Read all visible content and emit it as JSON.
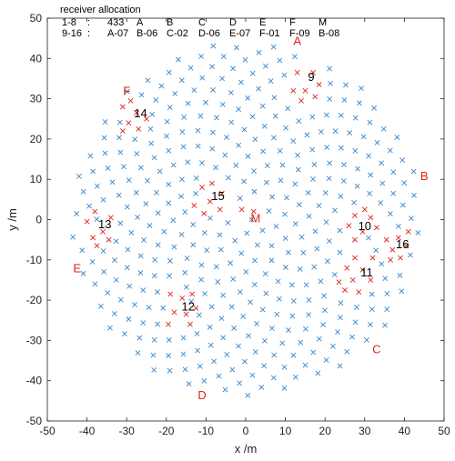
{
  "chart_data": {
    "type": "scatter",
    "title": "",
    "xlabel": "x /m",
    "ylabel": "y /m",
    "xlim": [
      -50,
      50
    ],
    "ylim": [
      -50,
      50
    ],
    "xticks": [
      -50,
      -40,
      -30,
      -20,
      -10,
      0,
      10,
      20,
      30,
      40,
      50
    ],
    "yticks": [
      -50,
      -40,
      -30,
      -20,
      -10,
      0,
      10,
      20,
      30,
      40,
      50
    ],
    "grid": false,
    "array_radius_m": 44,
    "colors": {
      "array": "#3a86c8",
      "selected": "#e0231b"
    },
    "legend": {
      "title": "receiver allocation",
      "rows": [
        [
          "1-8",
          ":",
          "433",
          "A",
          "B",
          "C",
          "D",
          "E",
          "F",
          "M"
        ],
        [
          "9-16",
          ":",
          "A-07",
          "B-06",
          "C-02",
          "D-06",
          "E-07",
          "F-01",
          "F-09",
          "B-08"
        ]
      ]
    },
    "group_labels": [
      {
        "text": "A",
        "x": 13.0,
        "y": 44.5
      },
      {
        "text": "B",
        "x": 45.0,
        "y": 11.0
      },
      {
        "text": "C",
        "x": 33.0,
        "y": -32.0
      },
      {
        "text": "D",
        "x": -11.0,
        "y": -43.5
      },
      {
        "text": "E",
        "x": -42.5,
        "y": -12.0
      },
      {
        "text": "F",
        "x": -30.0,
        "y": 32.0
      },
      {
        "text": "M",
        "x": 2.5,
        "y": 0.5
      }
    ],
    "subarray_numbers": [
      {
        "text": "9",
        "x": 16.5,
        "y": 35.5
      },
      {
        "text": "10",
        "x": 30.0,
        "y": -1.5
      },
      {
        "text": "11",
        "x": 30.5,
        "y": -13.0
      },
      {
        "text": "12",
        "x": -14.5,
        "y": -21.5
      },
      {
        "text": "13",
        "x": -35.5,
        "y": -1.0
      },
      {
        "text": "14",
        "x": -26.5,
        "y": 26.5
      },
      {
        "text": "15",
        "x": -7.0,
        "y": 6.0
      },
      {
        "text": "16",
        "x": 39.5,
        "y": -6.0
      }
    ],
    "selected_clusters": [
      {
        "name": "9",
        "points": [
          [
            13.0,
            36.5
          ],
          [
            15.0,
            32.0
          ],
          [
            17.0,
            36.5
          ],
          [
            18.5,
            33.5
          ],
          [
            12.0,
            32.0
          ],
          [
            14.0,
            29.5
          ],
          [
            17.5,
            30.5
          ]
        ]
      },
      {
        "name": "F",
        "points": [
          [
            -31.0,
            28.0
          ],
          [
            -29.0,
            29.5
          ],
          [
            -27.5,
            26.5
          ],
          [
            -29.5,
            24.0
          ],
          [
            -31.0,
            22.0
          ],
          [
            -27.0,
            22.5
          ],
          [
            -25.0,
            25.0
          ]
        ]
      },
      {
        "name": "15",
        "points": [
          [
            -11.0,
            8.0
          ],
          [
            -8.5,
            9.0
          ],
          [
            -6.0,
            6.5
          ],
          [
            -9.0,
            4.5
          ],
          [
            -6.5,
            2.5
          ],
          [
            -13.0,
            3.5
          ],
          [
            -10.5,
            1.5
          ]
        ]
      },
      {
        "name": "13",
        "points": [
          [
            -40.0,
            -0.5
          ],
          [
            -38.0,
            2.0
          ],
          [
            -36.0,
            -3.0
          ],
          [
            -34.0,
            0.5
          ],
          [
            -38.5,
            -4.5
          ],
          [
            -34.5,
            -5.0
          ],
          [
            -37.5,
            -6.5
          ]
        ]
      },
      {
        "name": "10",
        "points": [
          [
            26.0,
            -1.5
          ],
          [
            27.5,
            1.0
          ],
          [
            29.5,
            -3.0
          ],
          [
            31.5,
            0.5
          ],
          [
            27.5,
            -5.0
          ],
          [
            33.0,
            -2.0
          ],
          [
            30.0,
            2.5
          ]
        ]
      },
      {
        "name": "16",
        "points": [
          [
            38.5,
            -4.5
          ],
          [
            40.5,
            -6.5
          ],
          [
            37.0,
            -7.5
          ],
          [
            39.0,
            -9.5
          ],
          [
            41.0,
            -3.0
          ],
          [
            35.5,
            -5.0
          ],
          [
            36.5,
            -10.0
          ]
        ]
      },
      {
        "name": "11",
        "points": [
          [
            25.5,
            -12.0
          ],
          [
            27.5,
            -9.5
          ],
          [
            29.5,
            -12.5
          ],
          [
            27.0,
            -15.0
          ],
          [
            31.5,
            -15.0
          ],
          [
            23.5,
            -15.5
          ],
          [
            25.0,
            -17.5
          ],
          [
            28.5,
            -18.0
          ],
          [
            32.0,
            -9.5
          ]
        ]
      },
      {
        "name": "12",
        "points": [
          [
            -19.0,
            -18.5
          ],
          [
            -16.0,
            -19.5
          ],
          [
            -13.5,
            -18.5
          ],
          [
            -18.0,
            -23.0
          ],
          [
            -15.0,
            -23.5
          ],
          [
            -12.5,
            -22.0
          ],
          [
            -14.0,
            -26.0
          ],
          [
            -19.5,
            -26.0
          ]
        ]
      },
      {
        "name": "M",
        "points": [
          [
            -1.0,
            2.5
          ],
          [
            2.0,
            2.0
          ]
        ]
      }
    ]
  }
}
